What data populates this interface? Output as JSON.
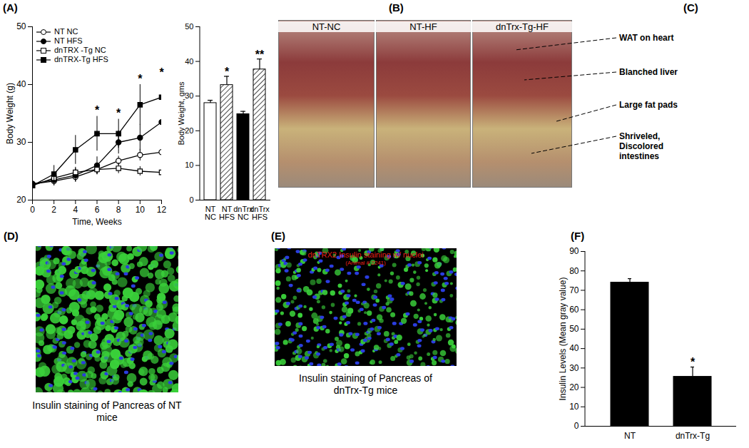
{
  "chart_data": [
    {
      "type": "line",
      "panel": "(A)",
      "x_label": "Time, Weeks",
      "y_label": "Body Weight (g)",
      "x": [
        0,
        2,
        4,
        6,
        8,
        10,
        12
      ],
      "xlim": [
        0,
        12
      ],
      "xticks": [
        0,
        2,
        4,
        6,
        8,
        10,
        12
      ],
      "ylim": [
        20,
        50
      ],
      "yticks": [
        20,
        30,
        40,
        50
      ],
      "legend": "top-left",
      "series": [
        {
          "name": "NT NC",
          "color": "#000000",
          "marker": "circle-open",
          "values": [
            22.8,
            23.3,
            24.0,
            25.3,
            26.8,
            27.8,
            28.3
          ],
          "errors": [
            0.6,
            0.8,
            0.8,
            0.9,
            0.8,
            1.0,
            0.8
          ]
        },
        {
          "name": "NT HFS",
          "color": "#000000",
          "marker": "circle",
          "values": [
            22.8,
            23.5,
            24.3,
            26.0,
            30.0,
            30.8,
            33.5
          ],
          "errors": [
            0.6,
            1.0,
            1.2,
            1.5,
            2.0,
            2.3,
            2.5
          ]
        },
        {
          "name": "dnTRX -Tg NC",
          "color": "#000000",
          "marker": "square-open",
          "values": [
            22.5,
            23.8,
            24.8,
            25.3,
            25.5,
            25.0,
            24.8
          ],
          "errors": [
            0.7,
            0.8,
            0.9,
            0.8,
            0.9,
            0.8,
            0.7
          ]
        },
        {
          "name": "dnTRX-Tg HFS",
          "color": "#000000",
          "marker": "square",
          "values": [
            22.5,
            24.5,
            28.7,
            31.5,
            31.5,
            36.5,
            37.8
          ],
          "errors": [
            0.8,
            1.5,
            2.5,
            3.0,
            2.5,
            3.5,
            3.0
          ]
        }
      ],
      "annotations": [
        {
          "x": 6,
          "y": 35.5,
          "text": "*"
        },
        {
          "x": 8,
          "y": 35.0,
          "text": "*"
        },
        {
          "x": 10,
          "y": 41.0,
          "text": "*"
        },
        {
          "x": 12,
          "y": 42.0,
          "text": "*"
        }
      ]
    },
    {
      "type": "bar",
      "y_label": "Body Weight, gms",
      "categories": [
        "NT\nNC",
        "NT\nHFS",
        "dnTrx\nNC",
        "dnTrx\nHFS"
      ],
      "values": [
        28.0,
        33.2,
        24.8,
        37.7
      ],
      "errors": [
        0.8,
        2.5,
        0.8,
        3.0
      ],
      "colors": [
        "#ffffff",
        "hatch",
        "#000000",
        "hatch"
      ],
      "ylim": [
        0,
        50
      ],
      "yticks": [
        0,
        10,
        20,
        30,
        40,
        50
      ],
      "annotations": [
        {
          "category": "NT\nHFS",
          "y": 37.0,
          "text": "*"
        },
        {
          "category": "dnTrx\nHFS",
          "y": 42.0,
          "text": "**"
        }
      ]
    },
    {
      "type": "bar",
      "panel": "(F)",
      "y_label": "Insulin Levels (Mean gray value)",
      "categories": [
        "NT",
        "dnTrx-Tg"
      ],
      "values": [
        74,
        25.5
      ],
      "errors": [
        2,
        5
      ],
      "color": "#000000",
      "ylim": [
        0,
        90
      ],
      "yticks": [
        0,
        10,
        20,
        30,
        40,
        50,
        60,
        70,
        80,
        90
      ],
      "annotations": [
        {
          "category": "dnTrx-Tg",
          "y": 33,
          "text": "*"
        }
      ]
    }
  ],
  "images": [
    {
      "panel": "(B)",
      "photos": [
        "NT-NC",
        "NT-HF"
      ]
    },
    {
      "panel": "(C)",
      "photos": [
        "dnTrx-Tg-HF"
      ],
      "annotations": [
        "WAT on heart",
        "Blanched liver",
        "Large fat pads",
        "Shriveled, Discolored intestines"
      ]
    },
    {
      "panel": "(D)",
      "caption": "Insulin staining of Pancreas of NT mice"
    },
    {
      "panel": "(E)",
      "caption": "Insulin staining of Pancreas of dnTrx-Tg mice",
      "overlay_text": [
        "dnTRX2 Insulin staining w/ nuclei",
        "(Animal # 2241)"
      ]
    }
  ]
}
